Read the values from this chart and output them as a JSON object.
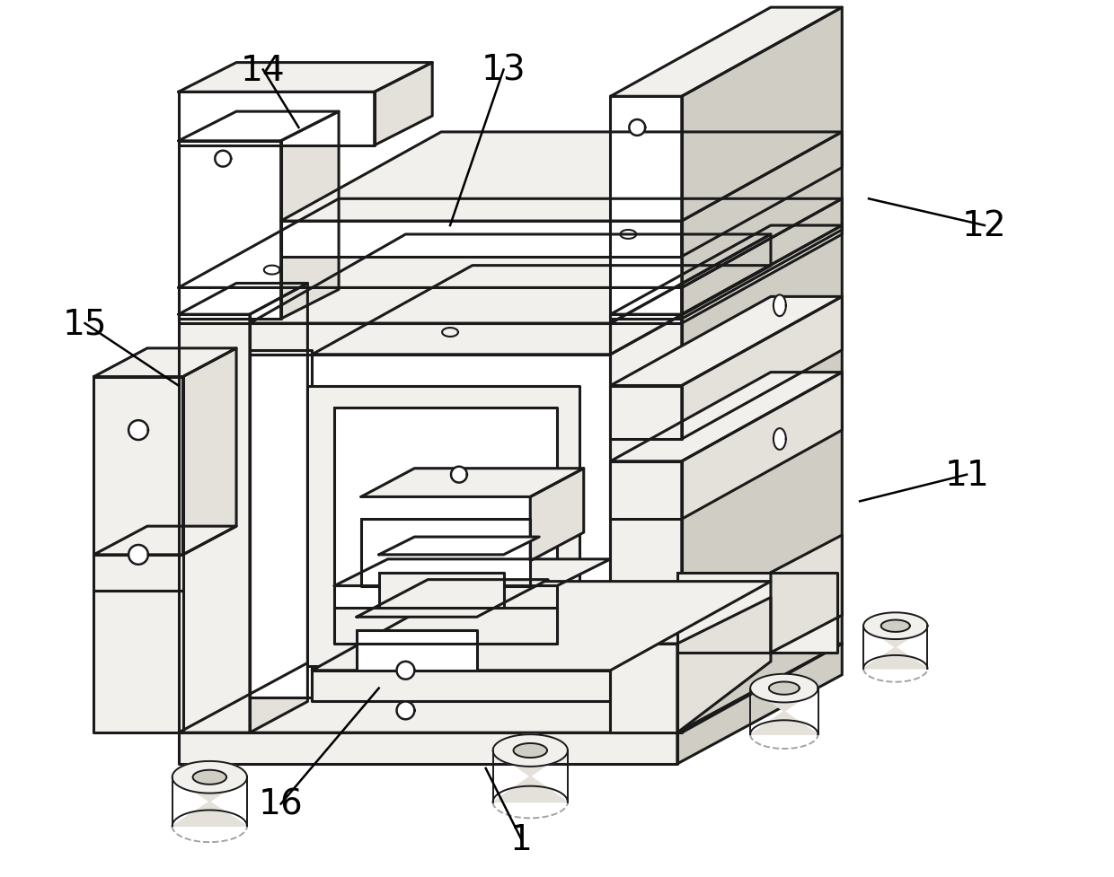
{
  "background_color": "#ffffff",
  "line_color": "#1a1a1a",
  "label_color": "#000000",
  "label_fontsize": 28,
  "figsize": [
    12.4,
    9.78
  ],
  "dpi": 100,
  "face_white": "#ffffff",
  "face_light": "#f2f0ec",
  "face_mid": "#e4e1da",
  "face_dark": "#d0cdc5",
  "face_darker": "#b8b5ad",
  "lw_main": 2.2,
  "lw_thin": 1.4
}
